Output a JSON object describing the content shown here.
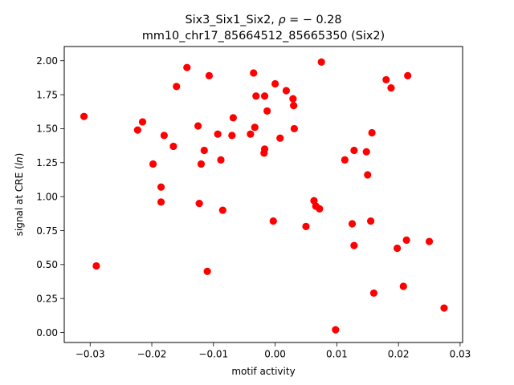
{
  "chart_data": {
    "type": "scatter",
    "title_line1_prefix": "Six3_Six1_Six2, ",
    "title_line1_rho": "ρ",
    "title_line1_suffix": " = − 0.28",
    "title_line2": "mm10_chr17_85664512_85665350 (Six2)",
    "xlabel": "motif activity",
    "ylabel_prefix": "signal at CRE (",
    "ylabel_italic": "ln",
    "ylabel_suffix": ")",
    "xlim": [
      -0.0342,
      0.0304
    ],
    "ylim": [
      -0.0735,
      2.1045
    ],
    "xticks": [
      -0.03,
      -0.02,
      -0.01,
      0.0,
      0.01,
      0.02,
      0.03
    ],
    "xtick_labels": [
      "−0.03",
      "−0.02",
      "−0.01",
      "0.00",
      "0.01",
      "0.02",
      "0.03"
    ],
    "yticks": [
      0.0,
      0.25,
      0.5,
      0.75,
      1.0,
      1.25,
      1.5,
      1.75,
      2.0
    ],
    "ytick_labels": [
      "0.00",
      "0.25",
      "0.50",
      "0.75",
      "1.00",
      "1.25",
      "1.50",
      "1.75",
      "2.00"
    ],
    "marker_color": "#ff0000",
    "grid": false,
    "points": [
      [
        -0.031,
        1.59
      ],
      [
        -0.029,
        0.49
      ],
      [
        -0.0223,
        1.49
      ],
      [
        -0.0215,
        1.55
      ],
      [
        -0.0198,
        1.24
      ],
      [
        -0.0185,
        1.07
      ],
      [
        -0.0185,
        0.96
      ],
      [
        -0.018,
        1.45
      ],
      [
        -0.0165,
        1.37
      ],
      [
        -0.016,
        1.81
      ],
      [
        -0.0143,
        1.95
      ],
      [
        -0.0125,
        1.52
      ],
      [
        -0.0123,
        0.95
      ],
      [
        -0.012,
        1.24
      ],
      [
        -0.0115,
        1.34
      ],
      [
        -0.011,
        0.45
      ],
      [
        -0.0107,
        1.89
      ],
      [
        -0.0093,
        1.46
      ],
      [
        -0.0088,
        1.27
      ],
      [
        -0.0085,
        0.9
      ],
      [
        -0.007,
        1.45
      ],
      [
        -0.0068,
        1.58
      ],
      [
        -0.004,
        1.46
      ],
      [
        -0.0035,
        1.91
      ],
      [
        -0.0033,
        1.51
      ],
      [
        -0.0031,
        1.74
      ],
      [
        -0.0017,
        1.74
      ],
      [
        -0.0018,
        1.32
      ],
      [
        -0.0017,
        1.35
      ],
      [
        -0.0013,
        1.63
      ],
      [
        -0.0003,
        0.82
      ],
      [
        0.0,
        1.83
      ],
      [
        0.0008,
        1.43
      ],
      [
        0.0018,
        1.78
      ],
      [
        0.0029,
        1.72
      ],
      [
        0.003,
        1.67
      ],
      [
        0.0031,
        1.5
      ],
      [
        0.005,
        0.78
      ],
      [
        0.0063,
        0.97
      ],
      [
        0.0066,
        0.93
      ],
      [
        0.0072,
        0.91
      ],
      [
        0.0075,
        1.99
      ],
      [
        0.0098,
        0.02
      ],
      [
        0.0113,
        1.27
      ],
      [
        0.0125,
        0.8
      ],
      [
        0.0128,
        1.34
      ],
      [
        0.0128,
        0.64
      ],
      [
        0.0148,
        1.33
      ],
      [
        0.015,
        1.16
      ],
      [
        0.0155,
        0.82
      ],
      [
        0.0157,
        1.47
      ],
      [
        0.016,
        0.29
      ],
      [
        0.018,
        1.86
      ],
      [
        0.0188,
        1.8
      ],
      [
        0.0198,
        0.62
      ],
      [
        0.0208,
        0.34
      ],
      [
        0.0213,
        0.68
      ],
      [
        0.0215,
        1.89
      ],
      [
        0.025,
        0.67
      ],
      [
        0.0274,
        0.18
      ]
    ]
  }
}
